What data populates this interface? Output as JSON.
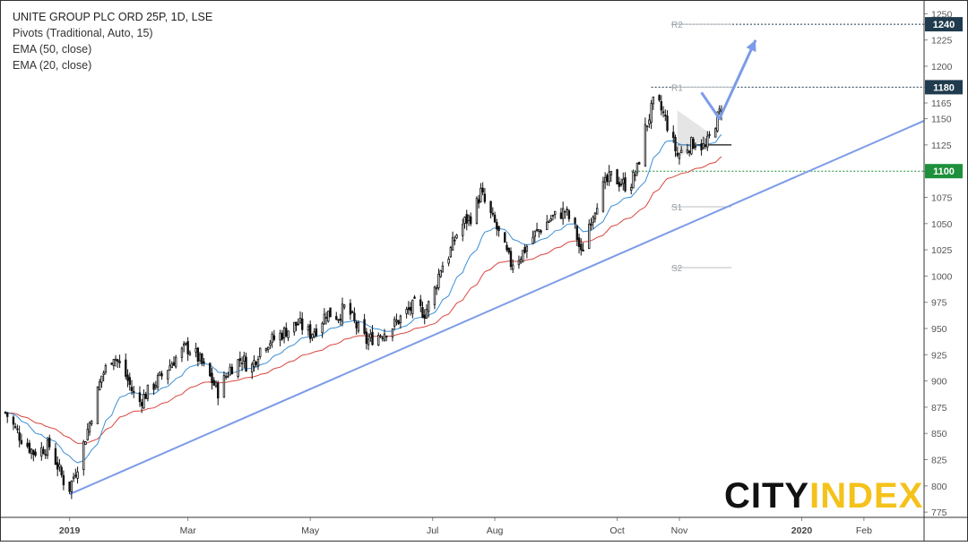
{
  "legend": {
    "title": "UNITE GROUP PLC ORD 25P, 1D, LSE",
    "line1": "Pivots (Traditional, Auto, 15)",
    "line2": "EMA (50, close)",
    "line3": "EMA (20, close)"
  },
  "logo": {
    "part1": "CITY",
    "part2": "INDEX"
  },
  "colors": {
    "candle": "#111111",
    "ema50": "#d9473f",
    "ema20": "#3b8fd6",
    "trendline": "#7c9be8",
    "support": "#1e8f3a",
    "badge_dark": "#1f3b4d",
    "badge_green": "#1e8f3a",
    "logo_dark": "#111111",
    "logo_accent": "#f4c21b"
  },
  "chart_data": {
    "type": "candlestick",
    "title": "UNITE GROUP PLC ORD 25P, 1D, LSE",
    "ylim": [
      770,
      1258
    ],
    "y_ticks": [
      775,
      800,
      825,
      850,
      875,
      900,
      925,
      950,
      975,
      1000,
      1025,
      1050,
      1075,
      1100,
      1125,
      1150,
      1165,
      1180,
      1200,
      1225,
      1240,
      1250
    ],
    "x_labels": [
      "2019",
      "Mar",
      "May",
      "Jul",
      "Aug",
      "Oct",
      "Nov",
      "2020",
      "Feb"
    ],
    "x_label_days": [
      0,
      59,
      120,
      181,
      212,
      273,
      304,
      365,
      396
    ],
    "x_range_days": [
      -32,
      426
    ],
    "close_path": [
      [
        -32,
        870
      ],
      [
        -25,
        848
      ],
      [
        -18,
        832
      ],
      [
        -10,
        838
      ],
      [
        -3,
        805
      ],
      [
        0,
        798
      ],
      [
        4,
        820
      ],
      [
        10,
        860
      ],
      [
        16,
        905
      ],
      [
        22,
        925
      ],
      [
        28,
        905
      ],
      [
        34,
        878
      ],
      [
        40,
        892
      ],
      [
        46,
        905
      ],
      [
        52,
        920
      ],
      [
        58,
        932
      ],
      [
        62,
        928
      ],
      [
        68,
        910
      ],
      [
        74,
        890
      ],
      [
        80,
        912
      ],
      [
        86,
        922
      ],
      [
        90,
        910
      ],
      [
        96,
        935
      ],
      [
        102,
        940
      ],
      [
        108,
        948
      ],
      [
        114,
        955
      ],
      [
        120,
        945
      ],
      [
        124,
        952
      ],
      [
        128,
        965
      ],
      [
        134,
        962
      ],
      [
        138,
        972
      ],
      [
        142,
        955
      ],
      [
        148,
        938
      ],
      [
        154,
        944
      ],
      [
        160,
        950
      ],
      [
        166,
        962
      ],
      [
        172,
        972
      ],
      [
        177,
        965
      ],
      [
        181,
        980
      ],
      [
        185,
        1008
      ],
      [
        189,
        1020
      ],
      [
        193,
        1040
      ],
      [
        197,
        1052
      ],
      [
        201,
        1058
      ],
      [
        205,
        1080
      ],
      [
        208,
        1065
      ],
      [
        212,
        1050
      ],
      [
        216,
        1030
      ],
      [
        220,
        1012
      ],
      [
        225,
        1020
      ],
      [
        232,
        1040
      ],
      [
        240,
        1055
      ],
      [
        247,
        1062
      ],
      [
        252,
        1045
      ],
      [
        255,
        1020
      ],
      [
        259,
        1050
      ],
      [
        265,
        1082
      ],
      [
        270,
        1095
      ],
      [
        274,
        1090
      ],
      [
        279,
        1085
      ],
      [
        283,
        1102
      ],
      [
        287,
        1140
      ],
      [
        292,
        1170
      ],
      [
        297,
        1150
      ],
      [
        300,
        1132
      ],
      [
        303,
        1115
      ],
      [
        307,
        1122
      ],
      [
        312,
        1128
      ],
      [
        317,
        1122
      ],
      [
        321,
        1142
      ],
      [
        325,
        1160
      ]
    ],
    "series": [
      {
        "name": "EMA (20, close)"
      },
      {
        "name": "EMA (50, close)"
      }
    ],
    "pivots": [
      {
        "label": "R2",
        "value": 1240,
        "start_day": 300,
        "end_day": 330
      },
      {
        "label": "R1",
        "value": 1180,
        "start_day": 300,
        "end_day": 330
      },
      {
        "label": "S1",
        "value": 1066,
        "start_day": 300,
        "end_day": 330
      },
      {
        "label": "S2",
        "value": 1008,
        "start_day": 300,
        "end_day": 330
      }
    ],
    "trendline": {
      "x1_day": 0,
      "y1": 792,
      "x2_day": 426,
      "y2": 1148
    },
    "horizontal_levels": [
      {
        "value": 1240,
        "badge": "1240",
        "style": "dotted",
        "color": "badge_dark",
        "start_day": 300
      },
      {
        "value": 1180,
        "badge": "1180",
        "style": "dotted",
        "color": "badge_dark",
        "start_day": 290
      },
      {
        "value": 1100,
        "badge": "1100",
        "style": "dotted",
        "color": "badge_green",
        "start_day": 280
      }
    ],
    "pivot_line_level": {
      "value": 1125,
      "start_day": 303,
      "end_day": 330
    },
    "triangle": {
      "start_day": 303,
      "end_day": 320,
      "top_start": 1158,
      "bottom_start": 1112,
      "apex": 1135
    },
    "projection": [
      [
        315,
        1175
      ],
      [
        324,
        1150
      ],
      [
        342,
        1225
      ]
    ],
    "grid": false
  }
}
